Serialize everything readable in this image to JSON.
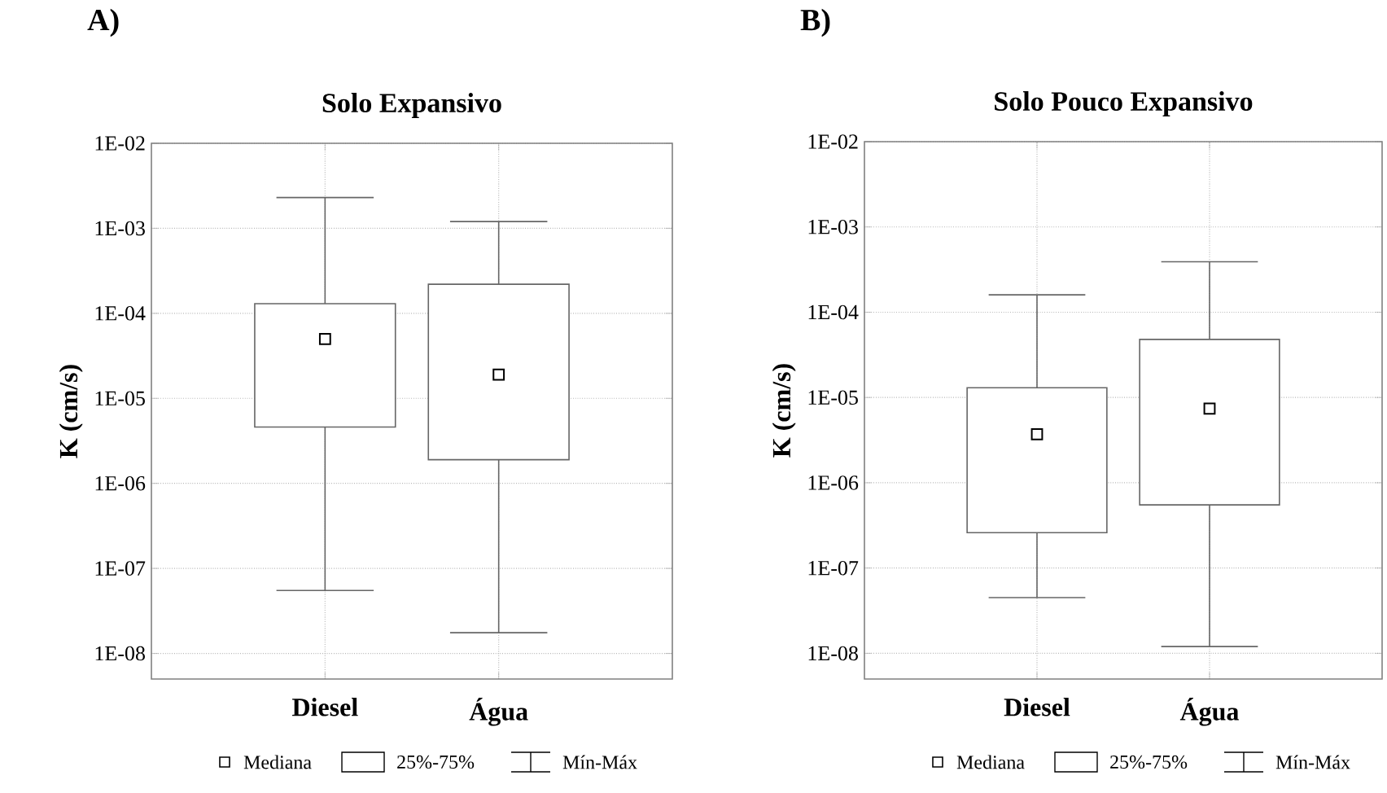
{
  "chart_data": [
    {
      "type": "box",
      "title": "Solo Expansivo",
      "ylabel": "K (cm/s)",
      "categories": [
        "Diesel",
        "Água"
      ],
      "boxes": [
        {
          "low": 5.5e-08,
          "q1": 4.6e-06,
          "median": 5e-05,
          "q3": 0.00013,
          "high": 0.0023
        },
        {
          "low": 1.75e-08,
          "q1": 1.9e-06,
          "median": 1.9e-05,
          "q3": 0.00022,
          "high": 0.0012
        }
      ],
      "log": "y",
      "ylim": [
        5e-09,
        0.01
      ],
      "yticks": [
        {
          "value": 1e-08,
          "label": "1E-08"
        },
        {
          "value": 1e-07,
          "label": "1E-07"
        },
        {
          "value": 1e-06,
          "label": "1E-06"
        },
        {
          "value": 1e-05,
          "label": "1E-05"
        },
        {
          "value": 0.0001,
          "label": "1E-04"
        },
        {
          "value": 0.001,
          "label": "1E-03"
        },
        {
          "value": 0.01,
          "label": "1E-02"
        }
      ],
      "grid": true,
      "marker": "square",
      "annotations": [
        "A)",
        "Mediana",
        "25%-75%",
        "Mín-Máx"
      ]
    },
    {
      "type": "box",
      "title": "Solo Pouco Expansivo",
      "ylabel": "K (cm/s)",
      "categories": [
        "Diesel",
        "Água"
      ],
      "boxes": [
        {
          "low": 4.5e-08,
          "q1": 2.6e-07,
          "median": 3.7e-06,
          "q3": 1.3e-05,
          "high": 0.00016
        },
        {
          "low": 1.2e-08,
          "q1": 5.5e-07,
          "median": 7.4e-06,
          "q3": 4.8e-05,
          "high": 0.00039
        }
      ],
      "log": "y",
      "ylim": [
        5e-09,
        0.01
      ],
      "yticks": [
        {
          "value": 1e-08,
          "label": "1E-08"
        },
        {
          "value": 1e-07,
          "label": "1E-07"
        },
        {
          "value": 1e-06,
          "label": "1E-06"
        },
        {
          "value": 1e-05,
          "label": "1E-05"
        },
        {
          "value": 0.0001,
          "label": "1E-04"
        },
        {
          "value": 0.001,
          "label": "1E-03"
        },
        {
          "value": 0.01,
          "label": "1E-02"
        }
      ],
      "grid": true,
      "marker": "square",
      "annotations": [
        "B)",
        "Mediana",
        "25%-75%",
        "Mín-Máx"
      ]
    }
  ]
}
